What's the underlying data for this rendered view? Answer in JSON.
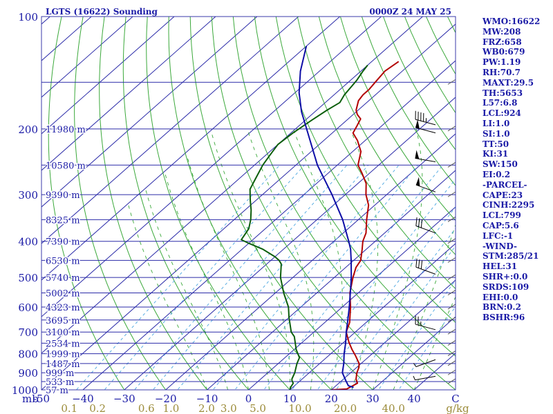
{
  "chart_data": {
    "type": "line",
    "title": "LGTS (16622) Sounding",
    "time_label": "0000Z 24 MAY 25",
    "pressure_ticks": [
      {
        "p": 100,
        "label": "100"
      },
      {
        "p": 200,
        "label": "200"
      },
      {
        "p": 300,
        "label": "300"
      },
      {
        "p": 400,
        "label": "400"
      },
      {
        "p": 500,
        "label": "500"
      },
      {
        "p": 600,
        "label": "600"
      },
      {
        "p": 700,
        "label": "700"
      },
      {
        "p": 800,
        "label": "800"
      },
      {
        "p": 900,
        "label": "900"
      },
      {
        "p": 1000,
        "label": "1000"
      }
    ],
    "temp_ticks": [
      {
        "t": -50,
        "label": "-50"
      },
      {
        "t": -40,
        "label": "−40"
      },
      {
        "t": -30,
        "label": "−30"
      },
      {
        "t": -20,
        "label": "−20"
      },
      {
        "t": -10,
        "label": "−10"
      },
      {
        "t": 0,
        "label": "0"
      },
      {
        "t": 10,
        "label": "10"
      },
      {
        "t": 20,
        "label": "20"
      },
      {
        "t": 30,
        "label": "30"
      },
      {
        "t": 40,
        "label": "40"
      },
      {
        "t": 50,
        "label": "C"
      }
    ],
    "left_axis_unit": "mb",
    "mixing_ratio_labels": [
      {
        "w": 0.1,
        "label": "0.1"
      },
      {
        "w": 0.2,
        "label": "0.2"
      },
      {
        "w": 0.6,
        "label": "0.6"
      },
      {
        "w": 1.0,
        "label": "1.0"
      },
      {
        "w": 2.0,
        "label": "2.0"
      },
      {
        "w": 3.0,
        "label": "3.0"
      },
      {
        "w": 5.0,
        "label": "5.0"
      },
      {
        "w": 10.0,
        "label": "10.0"
      },
      {
        "w": 20.0,
        "label": "20.0"
      },
      {
        "w": 40.0,
        "label": "40.0"
      },
      {
        "w": 80.0,
        "label": "g/kg"
      }
    ],
    "height_levels": [
      {
        "p": 200,
        "label": "11980 m"
      },
      {
        "p": 250,
        "label": "10580 m"
      },
      {
        "p": 300,
        "label": "9390 m"
      },
      {
        "p": 350,
        "label": "8325 m"
      },
      {
        "p": 400,
        "label": "7390 m"
      },
      {
        "p": 450,
        "label": "6530 m"
      },
      {
        "p": 500,
        "label": "5740 m"
      },
      {
        "p": 550,
        "label": "5002 m"
      },
      {
        "p": 600,
        "label": "4323 m"
      },
      {
        "p": 650,
        "label": "3695 m"
      },
      {
        "p": 700,
        "label": "3100 m"
      },
      {
        "p": 750,
        "label": "2534 m"
      },
      {
        "p": 800,
        "label": "1999 m"
      },
      {
        "p": 850,
        "label": "1487 m"
      },
      {
        "p": 900,
        "label": "999 m"
      },
      {
        "p": 950,
        "label": "533 m"
      },
      {
        "p": 1000,
        "label": "57 m"
      }
    ],
    "series": [
      {
        "key": "temperature",
        "color": "#b30000",
        "points": [
          [
            1000,
            20
          ],
          [
            995,
            23.5
          ],
          [
            960,
            24.5
          ],
          [
            935,
            23
          ],
          [
            900,
            21.5
          ],
          [
            870,
            20.5
          ],
          [
            850,
            19.5
          ],
          [
            810,
            16.5
          ],
          [
            780,
            14
          ],
          [
            745,
            11.2
          ],
          [
            700,
            7.8
          ],
          [
            660,
            6
          ],
          [
            600,
            2
          ],
          [
            550,
            -2
          ],
          [
            500,
            -5.5
          ],
          [
            470,
            -7.5
          ],
          [
            450,
            -8.3
          ],
          [
            420,
            -11
          ],
          [
            400,
            -13
          ],
          [
            380,
            -14.5
          ],
          [
            350,
            -18
          ],
          [
            320,
            -21.5
          ],
          [
            300,
            -25
          ],
          [
            280,
            -28
          ],
          [
            262,
            -32
          ],
          [
            250,
            -35
          ],
          [
            230,
            -38
          ],
          [
            215,
            -41.8
          ],
          [
            205,
            -45
          ],
          [
            196,
            -46
          ],
          [
            188,
            -47
          ],
          [
            183,
            -49
          ],
          [
            178,
            -50.5
          ],
          [
            168,
            -52.5
          ],
          [
            162,
            -53
          ],
          [
            157,
            -53
          ],
          [
            150,
            -53.5
          ],
          [
            140,
            -54.2
          ],
          [
            132,
            -53.5
          ]
        ]
      },
      {
        "key": "dewpoint",
        "color": "#0c5e0c",
        "points": [
          [
            1000,
            10
          ],
          [
            985,
            9.5
          ],
          [
            960,
            9
          ],
          [
            945,
            8
          ],
          [
            935,
            7.5
          ],
          [
            900,
            6.5
          ],
          [
            850,
            4.5
          ],
          [
            820,
            3.5
          ],
          [
            780,
            0.5
          ],
          [
            720,
            -3.5
          ],
          [
            700,
            -5.5
          ],
          [
            640,
            -10
          ],
          [
            600,
            -13
          ],
          [
            550,
            -18
          ],
          [
            500,
            -23
          ],
          [
            460,
            -26.5
          ],
          [
            450,
            -28
          ],
          [
            440,
            -30
          ],
          [
            420,
            -35
          ],
          [
            405,
            -40
          ],
          [
            396,
            -42.8
          ],
          [
            370,
            -44
          ],
          [
            350,
            -46
          ],
          [
            330,
            -48.5
          ],
          [
            310,
            -51.5
          ],
          [
            290,
            -54.5
          ],
          [
            270,
            -56.2
          ],
          [
            250,
            -58
          ],
          [
            235,
            -59
          ],
          [
            220,
            -60
          ],
          [
            205,
            -59.5
          ],
          [
            190,
            -58.5
          ],
          [
            178,
            -57.5
          ],
          [
            170,
            -56.5
          ],
          [
            162,
            -57.5
          ],
          [
            155,
            -58
          ],
          [
            148,
            -58.5
          ],
          [
            140,
            -59.5
          ],
          [
            135,
            -60
          ]
        ]
      },
      {
        "key": "parcel",
        "color": "#0d0da6",
        "points": [
          [
            985,
            24.7
          ],
          [
            975,
            23
          ],
          [
            945,
            21
          ],
          [
            900,
            18
          ],
          [
            850,
            15.8
          ],
          [
            800,
            13.2
          ],
          [
            750,
            10.7
          ],
          [
            700,
            7.8
          ],
          [
            650,
            4.9
          ],
          [
            600,
            1.7
          ],
          [
            550,
            -1.9
          ],
          [
            500,
            -5.9
          ],
          [
            450,
            -10.6
          ],
          [
            420,
            -13.8
          ],
          [
            400,
            -16.4
          ],
          [
            350,
            -23.8
          ],
          [
            300,
            -33.2
          ],
          [
            250,
            -44.8
          ],
          [
            200,
            -57.3
          ],
          [
            180,
            -63.2
          ],
          [
            160,
            -69
          ],
          [
            140,
            -74.6
          ],
          [
            120,
            -80
          ]
        ]
      }
    ],
    "wind_barbs": [
      {
        "p": 195,
        "dir": 285,
        "speed": 45
      },
      {
        "p": 205,
        "dir": 285,
        "speed": 50
      },
      {
        "p": 245,
        "dir": 280,
        "speed": 50
      },
      {
        "p": 295,
        "dir": 290,
        "speed": 50
      },
      {
        "p": 380,
        "dir": 290,
        "speed": 30
      },
      {
        "p": 490,
        "dir": 290,
        "speed": 30
      },
      {
        "p": 690,
        "dir": 285,
        "speed": 25
      },
      {
        "p": 830,
        "dir": 250,
        "speed": 5
      },
      {
        "p": 920,
        "dir": 260,
        "speed": 5
      }
    ],
    "hodograph_ticks": [
      150,
      200,
      250,
      300,
      350,
      400,
      450,
      500,
      550,
      600,
      650,
      700,
      750,
      800,
      850,
      900,
      950
    ]
  },
  "stats": [
    "WMO:16622",
    "MW:208",
    "FRZ:658",
    "WB0:679",
    "PW:1.19",
    "RH:70.7",
    "MAXT:29.5",
    "TH:5653",
    "L57:6.8",
    "LCL:924",
    "LI:1.0",
    "SI:1.0",
    "TT:50",
    "KI:31",
    "SW:150",
    "EI:0.2",
    "-PARCEL-",
    "CAPE:23",
    "CINH:2295",
    "LCL:799",
    "CAP:5.6",
    "LFC:-1",
    "-WIND-",
    "STM:285/21",
    "HEL:31",
    "SHR+:0.0",
    "SRDS:109",
    "EHI:0.0",
    "BRN:0.2",
    "BSHR:96"
  ],
  "colors": {
    "frame": "#3a3aa8",
    "isobar": "#2a2aa8",
    "isotherm": "#2a2aa8",
    "dry_adiabat": "#3aa83a",
    "moist_adiabat": "#3aa83a",
    "mixing_ratio": "#49a5e0",
    "mixing_label": "#9c8c3a",
    "text": "#1a1aa6"
  }
}
